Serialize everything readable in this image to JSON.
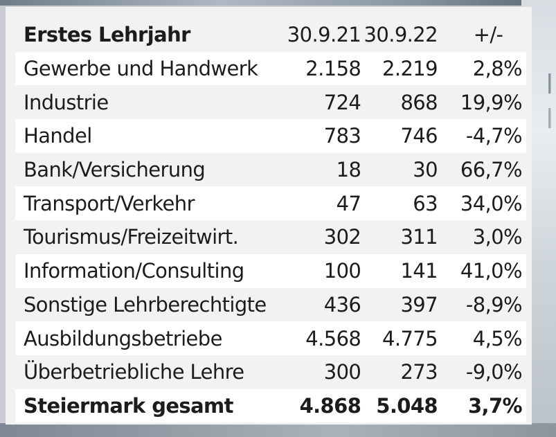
{
  "table": {
    "header": {
      "title": "Erstes Lehrjahr",
      "col1": "30.9.21",
      "col2": "30.9.22",
      "col3": "+/-"
    },
    "rows": [
      {
        "name": "Gewerbe und Handwerk",
        "v2021": "2.158",
        "v2022": "2.219",
        "change": "2,8%"
      },
      {
        "name": "Industrie",
        "v2021": "724",
        "v2022": "868",
        "change": "19,9%"
      },
      {
        "name": "Handel",
        "v2021": "783",
        "v2022": "746",
        "change": "-4,7%"
      },
      {
        "name": "Bank/Versicherung",
        "v2021": "18",
        "v2022": "30",
        "change": "66,7%"
      },
      {
        "name": "Transport/Verkehr",
        "v2021": "47",
        "v2022": "63",
        "change": "34,0%"
      },
      {
        "name": "Tourismus/Freizeitwirt.",
        "v2021": "302",
        "v2022": "311",
        "change": "3,0%"
      },
      {
        "name": "Information/Consulting",
        "v2021": "100",
        "v2022": "141",
        "change": "41,0%"
      },
      {
        "name": "Sonstige Lehrberechtigte",
        "v2021": "436",
        "v2022": "397",
        "change": "-8,9%"
      },
      {
        "name": "Ausbildungsbetriebe",
        "v2021": "4.568",
        "v2022": "4.775",
        "change": "4,5%"
      },
      {
        "name": "Überbetriebliche Lehre",
        "v2021": "300",
        "v2022": "273",
        "change": "-9,0%"
      }
    ],
    "total": {
      "name": "Steiermark gesamt",
      "v2021": "4.868",
      "v2022": "5.048",
      "change": "3,7%"
    }
  }
}
